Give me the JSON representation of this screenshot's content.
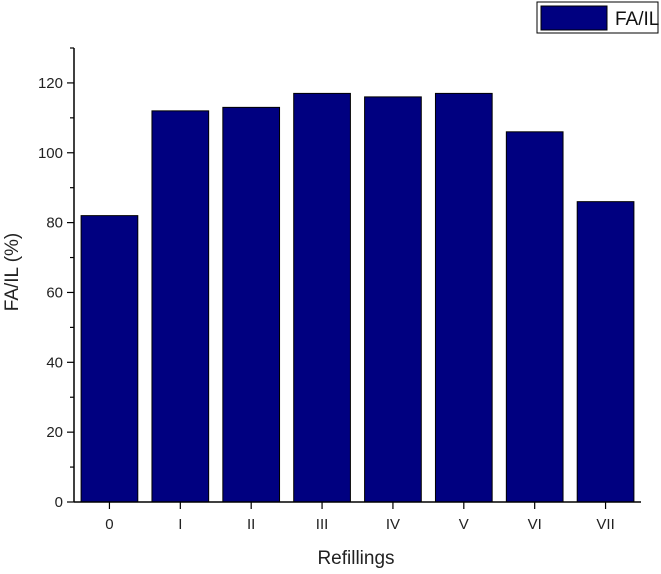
{
  "chart_data": {
    "type": "bar",
    "categories": [
      "0",
      "I",
      "II",
      "III",
      "IV",
      "V",
      "VI",
      "VII"
    ],
    "series": [
      {
        "name": "FA/IL",
        "values": [
          82,
          112,
          113,
          117,
          116,
          117,
          106,
          86
        ]
      }
    ],
    "xlabel": "Refillings",
    "ylabel": "FA/IL (%)",
    "ylim": [
      0,
      130
    ],
    "yticks": [
      0,
      20,
      40,
      60,
      80,
      100,
      120
    ],
    "grid": false,
    "legend_position": "top-right",
    "colors": {
      "bar_fill": "#000080",
      "bar_stroke": "#000000",
      "axis": "#000000"
    }
  }
}
